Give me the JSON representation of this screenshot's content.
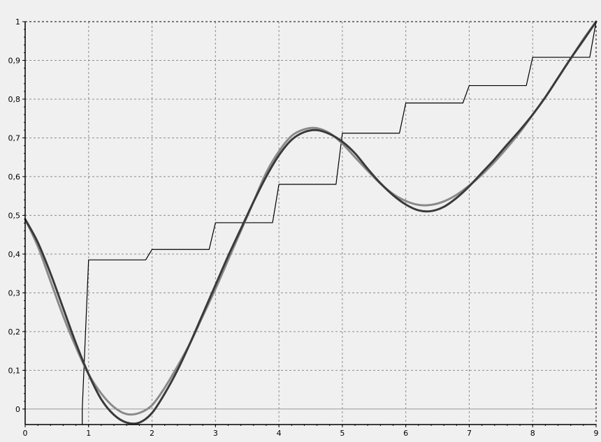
{
  "chart_data": {
    "type": "line",
    "title": "",
    "xlabel": "",
    "ylabel": "",
    "xlim": [
      0,
      9
    ],
    "ylim": [
      -0.04,
      1.0
    ],
    "grid": true,
    "legend": "none",
    "x_ticks": [
      {
        "value": 0,
        "label": "0"
      },
      {
        "value": 1,
        "label": "1"
      },
      {
        "value": 2,
        "label": "2"
      },
      {
        "value": 3,
        "label": "3"
      },
      {
        "value": 4,
        "label": "4"
      },
      {
        "value": 5,
        "label": "5"
      },
      {
        "value": 6,
        "label": "6"
      },
      {
        "value": 7,
        "label": "7"
      },
      {
        "value": 8,
        "label": "8"
      },
      {
        "value": 9,
        "label": "9"
      }
    ],
    "y_ticks": [
      {
        "value": 0,
        "label": "0"
      },
      {
        "value": 0.1,
        "label": "0,1"
      },
      {
        "value": 0.2,
        "label": "0,2"
      },
      {
        "value": 0.3,
        "label": "0,3"
      },
      {
        "value": 0.4,
        "label": "0,4"
      },
      {
        "value": 0.5,
        "label": "0,5"
      },
      {
        "value": 0.6,
        "label": "0,6"
      },
      {
        "value": 0.7,
        "label": "0,7"
      },
      {
        "value": 0.8,
        "label": "0,8"
      },
      {
        "value": 0.9,
        "label": "0,9"
      },
      {
        "value": 1,
        "label": "1"
      }
    ],
    "baseline": {
      "y": 0,
      "color": "#9a9a9a"
    },
    "series": [
      {
        "style": "step",
        "color": "#000000",
        "points": [
          [
            0.9,
            -0.04
          ],
          [
            0.9,
            0.0
          ],
          [
            1.0,
            0.385
          ],
          [
            1.9,
            0.385
          ],
          [
            2.0,
            0.412
          ],
          [
            2.9,
            0.412
          ],
          [
            3.0,
            0.481
          ],
          [
            3.9,
            0.481
          ],
          [
            4.0,
            0.58
          ],
          [
            4.9,
            0.58
          ],
          [
            5.0,
            0.712
          ],
          [
            5.9,
            0.712
          ],
          [
            6.0,
            0.79
          ],
          [
            6.9,
            0.79
          ],
          [
            7.0,
            0.835
          ],
          [
            7.9,
            0.835
          ],
          [
            8.0,
            0.908
          ],
          [
            8.9,
            0.908
          ],
          [
            9.0,
            1.0
          ]
        ]
      },
      {
        "style": "smooth",
        "color": "#8a8a8a",
        "points": [
          [
            0,
            0.49
          ],
          [
            0.2,
            0.42
          ],
          [
            0.4,
            0.33
          ],
          [
            0.6,
            0.24
          ],
          [
            0.8,
            0.16
          ],
          [
            1.0,
            0.09
          ],
          [
            1.2,
            0.04
          ],
          [
            1.4,
            0.005
          ],
          [
            1.6,
            -0.013
          ],
          [
            1.8,
            -0.01
          ],
          [
            2.0,
            0.01
          ],
          [
            2.2,
            0.055
          ],
          [
            2.4,
            0.11
          ],
          [
            2.6,
            0.17
          ],
          [
            2.8,
            0.24
          ],
          [
            3.0,
            0.31
          ],
          [
            3.2,
            0.385
          ],
          [
            3.4,
            0.46
          ],
          [
            3.6,
            0.535
          ],
          [
            3.8,
            0.61
          ],
          [
            4.0,
            0.665
          ],
          [
            4.2,
            0.705
          ],
          [
            4.4,
            0.722
          ],
          [
            4.6,
            0.725
          ],
          [
            4.8,
            0.712
          ],
          [
            5.0,
            0.685
          ],
          [
            5.2,
            0.65
          ],
          [
            5.4,
            0.615
          ],
          [
            5.6,
            0.582
          ],
          [
            5.8,
            0.555
          ],
          [
            6.0,
            0.537
          ],
          [
            6.2,
            0.527
          ],
          [
            6.4,
            0.527
          ],
          [
            6.6,
            0.536
          ],
          [
            6.8,
            0.553
          ],
          [
            7.0,
            0.577
          ],
          [
            7.2,
            0.605
          ],
          [
            7.4,
            0.638
          ],
          [
            7.6,
            0.675
          ],
          [
            7.8,
            0.715
          ],
          [
            8.0,
            0.76
          ],
          [
            8.2,
            0.805
          ],
          [
            8.4,
            0.855
          ],
          [
            8.6,
            0.905
          ],
          [
            8.8,
            0.955
          ],
          [
            9.0,
            1.0
          ]
        ]
      },
      {
        "style": "smooth",
        "color": "#3a3a3a",
        "points": [
          [
            0,
            0.49
          ],
          [
            0.2,
            0.43
          ],
          [
            0.4,
            0.35
          ],
          [
            0.6,
            0.26
          ],
          [
            0.8,
            0.17
          ],
          [
            1.0,
            0.09
          ],
          [
            1.2,
            0.025
          ],
          [
            1.4,
            -0.015
          ],
          [
            1.6,
            -0.035
          ],
          [
            1.8,
            -0.035
          ],
          [
            2.0,
            -0.01
          ],
          [
            2.2,
            0.04
          ],
          [
            2.4,
            0.1
          ],
          [
            2.6,
            0.17
          ],
          [
            2.8,
            0.245
          ],
          [
            3.0,
            0.32
          ],
          [
            3.2,
            0.395
          ],
          [
            3.4,
            0.465
          ],
          [
            3.6,
            0.535
          ],
          [
            3.8,
            0.6
          ],
          [
            4.0,
            0.655
          ],
          [
            4.2,
            0.695
          ],
          [
            4.4,
            0.715
          ],
          [
            4.6,
            0.72
          ],
          [
            4.8,
            0.71
          ],
          [
            5.0,
            0.69
          ],
          [
            5.2,
            0.66
          ],
          [
            5.4,
            0.62
          ],
          [
            5.6,
            0.583
          ],
          [
            5.8,
            0.552
          ],
          [
            6.0,
            0.528
          ],
          [
            6.2,
            0.513
          ],
          [
            6.4,
            0.511
          ],
          [
            6.6,
            0.522
          ],
          [
            6.8,
            0.545
          ],
          [
            7.0,
            0.575
          ],
          [
            7.2,
            0.61
          ],
          [
            7.4,
            0.645
          ],
          [
            7.6,
            0.683
          ],
          [
            7.8,
            0.72
          ],
          [
            8.0,
            0.76
          ],
          [
            8.2,
            0.805
          ],
          [
            8.4,
            0.855
          ],
          [
            8.6,
            0.905
          ],
          [
            8.8,
            0.952
          ],
          [
            9.0,
            1.0
          ]
        ]
      }
    ]
  }
}
